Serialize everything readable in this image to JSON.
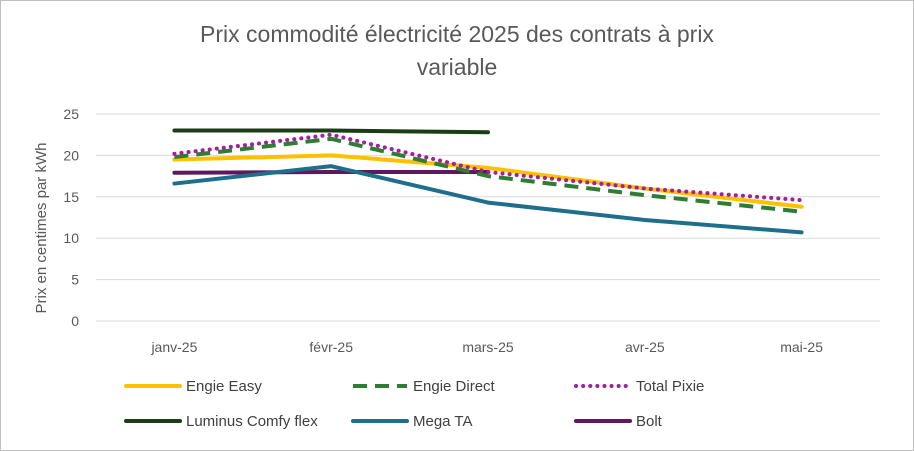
{
  "chart_data": {
    "type": "line",
    "title_line1": "Prix commodité électricité 2025 des contrats à prix",
    "title_line2": "variable",
    "ylabel": "Prix en centimes par kWh",
    "xlabel": "",
    "categories": [
      "janv-25",
      "févr-25",
      "mars-25",
      "avr-25",
      "mai-25"
    ],
    "ylim": [
      0,
      25
    ],
    "yticks": [
      0,
      5,
      10,
      15,
      20,
      25
    ],
    "grid": true,
    "legend_position": "bottom",
    "series": [
      {
        "name": "Engie Easy",
        "color": "#FFC000",
        "style": "solid",
        "values": [
          19.5,
          20.0,
          18.5,
          16.0,
          13.8
        ]
      },
      {
        "name": "Engie Direct",
        "color": "#2E7D32",
        "style": "dashed",
        "values": [
          19.8,
          22.0,
          17.5,
          15.2,
          13.2
        ]
      },
      {
        "name": "Total Pixie",
        "color": "#A020A0",
        "style": "dotted",
        "values": [
          20.2,
          22.5,
          18.0,
          16.0,
          14.6
        ]
      },
      {
        "name": "Luminus Comfy flex",
        "color": "#1B3D16",
        "style": "solid",
        "values": [
          23.0,
          23.0,
          22.8,
          null,
          null
        ]
      },
      {
        "name": "Mega TA",
        "color": "#1F6E8C",
        "style": "solid",
        "values": [
          16.6,
          18.7,
          14.3,
          12.2,
          10.7
        ]
      },
      {
        "name": "Bolt",
        "color": "#5C1A5C",
        "style": "solid",
        "values": [
          17.9,
          18.0,
          18.0,
          null,
          null
        ]
      }
    ]
  }
}
